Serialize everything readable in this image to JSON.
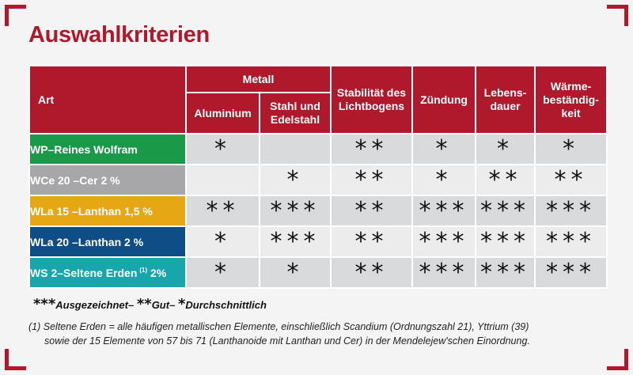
{
  "title": "Auswahlkriterien",
  "header": {
    "art": "Art",
    "metall": "Metall",
    "aluminium": "Aluminium",
    "stahl": [
      "Stahl und",
      "Edelstahl"
    ],
    "stabilitaet": [
      "Stabilität des",
      "Lichtbogens"
    ],
    "zuendung": "Zündung",
    "lebensdauer": [
      "Lebens-",
      "dauer"
    ],
    "waerme": [
      "Wärme-",
      "beständig-",
      "keit"
    ]
  },
  "rows": [
    {
      "label": "WP–Reines Wolfram",
      "footnote_mark": "",
      "label_suffix": "",
      "color": "#1a9a48",
      "values": [
        "*",
        "",
        "**",
        "*",
        "*",
        "*"
      ]
    },
    {
      "label": "WCe 20 –Cer 2 %",
      "footnote_mark": "",
      "label_suffix": "",
      "color": "#a7a7a9",
      "values": [
        "",
        "*",
        "**",
        "*",
        "**",
        "**"
      ]
    },
    {
      "label": "WLa 15 –Lanthan 1,5 %",
      "footnote_mark": "",
      "label_suffix": "",
      "color": "#e5a713",
      "values": [
        "**",
        "***",
        "**",
        "***",
        "***",
        "***"
      ]
    },
    {
      "label": "WLa 20 –Lanthan 2 %",
      "footnote_mark": "",
      "label_suffix": "",
      "color": "#0f4d86",
      "values": [
        "*",
        "***",
        "**",
        "***",
        "***",
        "***"
      ]
    },
    {
      "label": "WS 2–Seltene Erden",
      "footnote_mark": "(1)",
      "label_suffix": " 2%",
      "color": "#18a6ad",
      "values": [
        "*",
        "*",
        "**",
        "***",
        "***",
        "***"
      ]
    }
  ],
  "legend": {
    "s3": "***",
    "t3": "Ausgezeichnet–",
    "s2": "**",
    "t2": "Gut–",
    "s1": "*",
    "t1": "Durchschnittlich"
  },
  "footnote": {
    "line1": "(1) Seltene Erden = alle häufigen metallischen Elemente, einschließlich Scandium (Ordnungszahl 21), Yttrium (39)",
    "line2": "sowie der 15 Elemente von 57 bis 71 (Lanthanoide mit Lanthan und Cer) in der Mendelejew'schen Einordnung."
  },
  "colors": {
    "accent": "#b0182c"
  }
}
